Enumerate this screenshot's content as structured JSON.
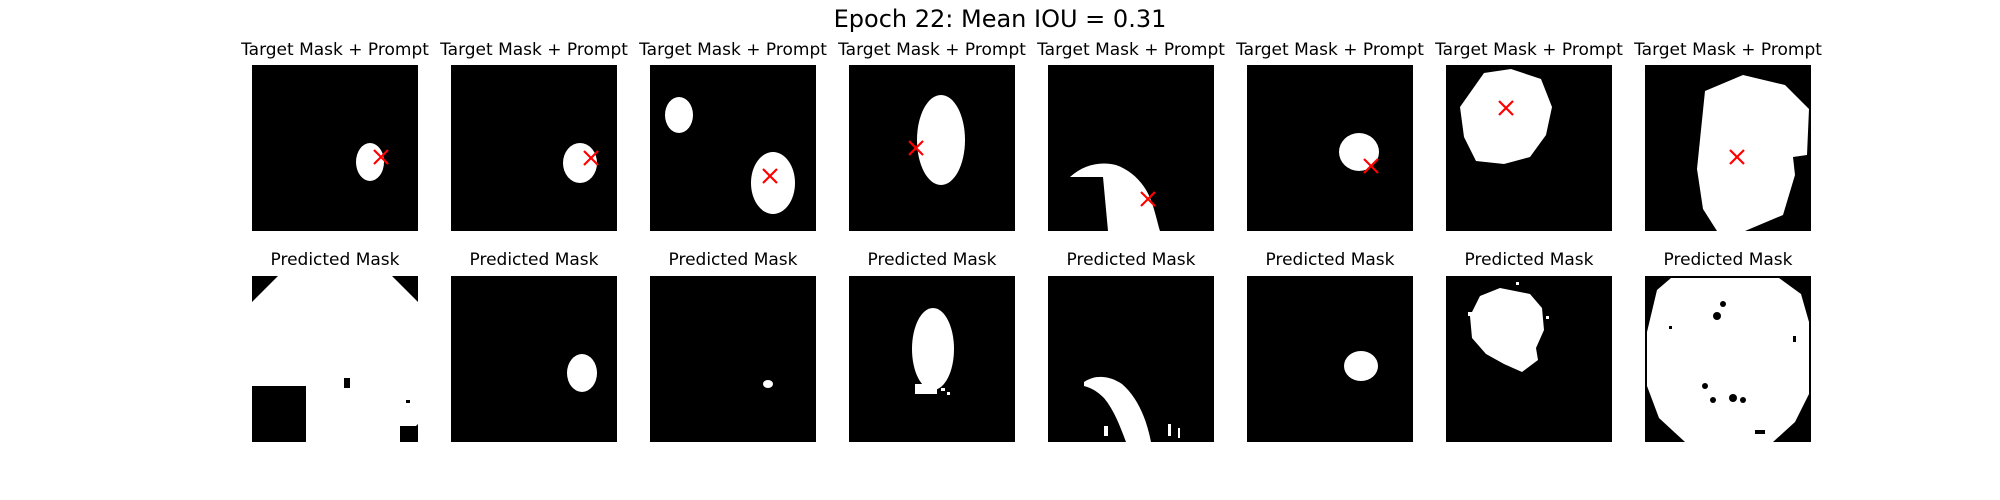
{
  "figure": {
    "title": "Epoch 22: Mean IOU = 0.31"
  },
  "columns": [
    {
      "target_title": "Target Mask + Prompt",
      "predicted_title": "Predicted Mask"
    },
    {
      "target_title": "Target Mask + Prompt",
      "predicted_title": "Predicted Mask"
    },
    {
      "target_title": "Target Mask + Prompt",
      "predicted_title": "Predicted Mask"
    },
    {
      "target_title": "Target Mask + Prompt",
      "predicted_title": "Predicted Mask"
    },
    {
      "target_title": "Target Mask + Prompt",
      "predicted_title": "Predicted Mask"
    },
    {
      "target_title": "Target Mask + Prompt",
      "predicted_title": "Predicted Mask"
    },
    {
      "target_title": "Target Mask + Prompt",
      "predicted_title": "Predicted Mask"
    },
    {
      "target_title": "Target Mask + Prompt",
      "predicted_title": "Predicted Mask"
    }
  ],
  "colors": {
    "background": "#000000",
    "mask": "#ffffff",
    "prompt_marker": "#ff0000"
  }
}
